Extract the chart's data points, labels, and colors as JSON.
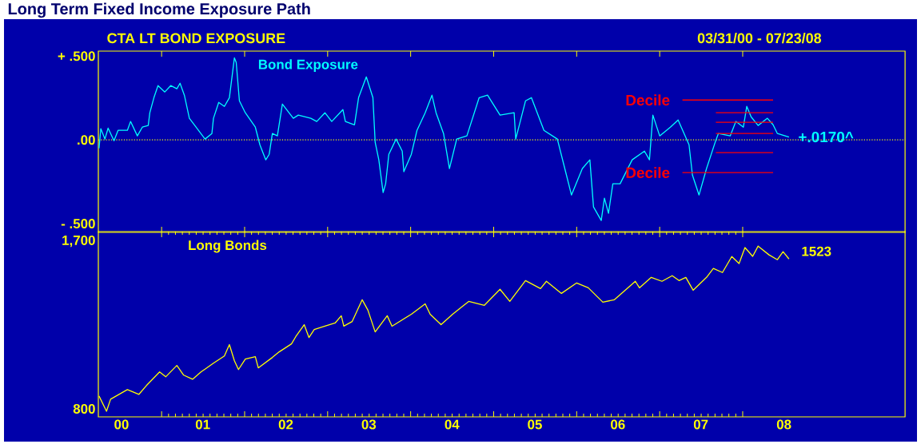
{
  "chart_data": [
    {
      "type": "line",
      "title": "Long Term Fixed Income Exposure Path",
      "subtitle": "CTA LT BOND EXPOSURE",
      "xlim": [
        "2000-03-28",
        "2009-12-16"
      ],
      "ylim": [
        -0.552,
        0.53
      ],
      "xticks": [
        {
          "value": "2001-01-01",
          "label": null
        },
        {
          "value": "2002-01-01",
          "label": null
        },
        {
          "value": "2003-01-01",
          "label": null
        },
        {
          "value": "2004-01-01",
          "label": null
        },
        {
          "value": "2005-01-01",
          "label": null
        },
        {
          "value": "2006-01-01",
          "label": null
        },
        {
          "value": "2007-01-01",
          "label": null
        },
        {
          "value": "2008-01-01",
          "label": null
        }
      ],
      "yticks": [
        {
          "value": 0.5,
          "label": "+ .500"
        },
        {
          "value": 0,
          "label": ".00"
        },
        {
          "value": -0.5,
          "label": "- .500"
        }
      ],
      "tick_labels": "y",
      "line_style": "solid",
      "marker": "none",
      "ref_lines": [
        {
          "axis": "y",
          "value": 0,
          "color": "#ffff00",
          "line_style": "dotted"
        }
      ],
      "annotations": [
        {
          "text": "Decile",
          "x": "2007-04-11",
          "y": 0.238
        },
        {
          "text": "Decile",
          "x": "2007-04-11",
          "y": -0.195
        },
        {
          "text": "+.0170^",
          "x": "2008-07-23",
          "y": 0.017
        },
        "03/31/00 - 07/23/08"
      ],
      "series": [
        {
          "name": "Bond Exposure",
          "color": "#00ffff",
          "x": [
            "2000-03-31",
            "2000-04-08",
            "2000-04-26",
            "2000-05-10",
            "2000-06-05",
            "2000-06-23",
            "2000-08-03",
            "2000-08-17",
            "2000-09-16",
            "2000-10-08",
            "2000-11-03",
            "2000-11-10",
            "2000-11-28",
            "2000-12-16",
            "2001-01-15",
            "2001-02-10",
            "2001-03-09",
            "2001-03-23",
            "2001-04-11",
            "2001-05-03",
            "2001-05-25",
            "2001-07-11",
            "2001-08-10",
            "2001-08-17",
            "2001-09-09",
            "2001-10-04",
            "2001-10-26",
            "2001-11-17",
            "2001-11-25",
            "2001-12-09",
            "2002-01-04",
            "2002-02-17",
            "2002-03-09",
            "2002-04-04",
            "2002-04-19",
            "2002-05-03",
            "2002-05-25",
            "2002-06-16",
            "2002-08-03",
            "2002-08-25",
            "2002-10-19",
            "2002-11-14",
            "2002-12-20",
            "2003-01-19",
            "2003-03-09",
            "2003-03-20",
            "2003-04-29",
            "2003-05-17",
            "2003-06-20",
            "2003-07-19",
            "2003-07-29",
            "2003-08-14",
            "2003-09-02",
            "2003-09-13",
            "2003-09-27",
            "2003-10-29",
            "2003-11-25",
            "2003-12-02",
            "2004-01-04",
            "2004-01-29",
            "2004-03-05",
            "2004-04-04",
            "2004-04-22",
            "2004-05-25",
            "2004-06-20",
            "2004-07-22",
            "2004-09-05",
            "2004-10-29",
            "2004-12-05",
            "2005-01-29",
            "2005-04-01",
            "2005-04-08",
            "2005-05-21",
            "2005-06-16",
            "2005-08-10",
            "2005-10-08",
            "2005-11-17",
            "2005-12-09",
            "2006-01-26",
            "2006-02-28",
            "2006-03-16",
            "2006-04-19",
            "2006-05-03",
            "2006-05-21",
            "2006-06-09",
            "2006-07-11",
            "2006-09-02",
            "2006-10-26",
            "2006-11-17",
            "2006-12-02",
            "2007-01-01",
            "2007-02-17",
            "2007-03-23",
            "2007-05-10",
            "2007-05-25",
            "2007-06-23",
            "2007-07-26",
            "2007-09-02",
            "2007-09-16",
            "2007-11-07",
            "2007-12-02",
            "2008-01-04",
            "2008-01-19",
            "2008-02-07",
            "2008-03-09",
            "2008-04-19",
            "2008-05-14",
            "2008-06-02",
            "2008-07-23"
          ],
          "values": [
            -0.05,
            0.067,
            0.005,
            0.07,
            -0.005,
            0.057,
            0.057,
            0.11,
            0.024,
            0.076,
            0.086,
            0.162,
            0.252,
            0.324,
            0.286,
            0.324,
            0.305,
            0.338,
            0.267,
            0.129,
            0.09,
            0.005,
            0.038,
            0.129,
            0.224,
            0.2,
            0.252,
            0.49,
            0.462,
            0.233,
            0.162,
            0.076,
            -0.029,
            -0.119,
            -0.086,
            0.038,
            0.024,
            0.214,
            0.129,
            0.148,
            0.129,
            0.11,
            0.162,
            0.11,
            0.181,
            0.11,
            0.09,
            0.252,
            0.376,
            0.252,
            -0.014,
            -0.119,
            -0.314,
            -0.262,
            -0.086,
            0.005,
            -0.067,
            -0.19,
            -0.086,
            0.057,
            0.162,
            0.267,
            0.162,
            0.038,
            -0.171,
            0.005,
            0.024,
            0.252,
            0.267,
            0.148,
            0.162,
            0.005,
            0.233,
            0.252,
            0.057,
            0.005,
            -0.21,
            -0.329,
            -0.171,
            -0.119,
            -0.4,
            -0.481,
            -0.348,
            -0.438,
            -0.262,
            -0.262,
            -0.119,
            -0.067,
            -0.119,
            0.148,
            0.024,
            0.076,
            0.119,
            -0.029,
            -0.21,
            -0.329,
            -0.171,
            -0.014,
            0.038,
            0.024,
            0.11,
            0.076,
            0.2,
            0.138,
            0.086,
            0.129,
            0.09,
            0.038,
            0.017
          ]
        },
        {
          "color": "#ff0000",
          "x": [
            "2007-04-11",
            "2008-05-14"
          ],
          "values": [
            0.238,
            0.238
          ]
        },
        {
          "color": "#ff0000",
          "x": [
            "2007-09-05",
            "2008-05-14"
          ],
          "values": [
            0.162,
            0.162
          ]
        },
        {
          "color": "#ff0000",
          "x": [
            "2007-09-05",
            "2008-05-14"
          ],
          "values": [
            0.105,
            0.105
          ]
        },
        {
          "color": "#ff0000",
          "x": [
            "2007-09-05",
            "2008-05-14"
          ],
          "values": [
            0.038,
            0.038
          ]
        },
        {
          "color": "#ff0000",
          "x": [
            "2007-09-05",
            "2008-05-14"
          ],
          "values": [
            -0.076,
            -0.076
          ]
        },
        {
          "color": "#ff0000",
          "x": [
            "2007-04-11",
            "2008-05-14"
          ],
          "values": [
            -0.195,
            -0.195
          ]
        }
      ]
    },
    {
      "type": "line",
      "xlim": [
        "2000-03-28",
        "2009-12-16"
      ],
      "ylim": [
        757,
        1752
      ],
      "xticks": [
        {
          "value": "2001-01-01",
          "label": null
        },
        {
          "value": "2002-01-01",
          "label": null
        },
        {
          "value": "2003-01-01",
          "label": null
        },
        {
          "value": "2004-01-01",
          "label": null
        },
        {
          "value": "2005-01-01",
          "label": null
        },
        {
          "value": "2006-01-01",
          "label": null
        },
        {
          "value": "2007-01-01",
          "label": null
        },
        {
          "value": "2008-01-01",
          "label": null
        },
        {
          "value": "2000-07-08",
          "label": "00"
        },
        {
          "value": "2001-07-01",
          "label": "01"
        },
        {
          "value": "2002-07-01",
          "label": "02"
        },
        {
          "value": "2003-07-01",
          "label": "03"
        },
        {
          "value": "2004-07-01",
          "label": "04"
        },
        {
          "value": "2005-07-01",
          "label": "05"
        },
        {
          "value": "2006-07-01",
          "label": "06"
        },
        {
          "value": "2007-07-01",
          "label": "07"
        },
        {
          "value": "2008-07-01",
          "label": "08"
        }
      ],
      "yticks": [
        {
          "value": 1700,
          "label": "1,700"
        },
        800
      ],
      "line_style": "solid",
      "marker": "none",
      "annotations": [
        "1523"
      ],
      "series": [
        {
          "name": "Long Bonds",
          "color": "#ffff00",
          "x": [
            "2000-03-31",
            "2000-05-03",
            "2000-05-21",
            "2000-08-03",
            "2000-09-23",
            "2000-10-26",
            "2000-12-23",
            "2001-01-19",
            "2001-03-09",
            "2001-04-08",
            "2001-05-17",
            "2001-06-23",
            "2001-08-17",
            "2001-10-04",
            "2001-10-26",
            "2001-11-17",
            "2001-12-05",
            "2002-01-04",
            "2002-02-17",
            "2002-03-02",
            "2002-05-03",
            "2002-06-02",
            "2002-07-26",
            "2002-08-14",
            "2002-09-20",
            "2002-10-11",
            "2002-11-03",
            "2002-12-20",
            "2003-02-03",
            "2003-03-02",
            "2003-03-13",
            "2003-04-19",
            "2003-06-02",
            "2003-06-27",
            "2003-07-29",
            "2003-09-20",
            "2003-10-11",
            "2004-01-04",
            "2004-03-05",
            "2004-03-27",
            "2004-05-14",
            "2004-07-04",
            "2004-08-17",
            "2004-09-13",
            "2004-11-21",
            "2005-01-29",
            "2005-03-13",
            "2005-05-21",
            "2005-07-26",
            "2005-08-21",
            "2005-10-26",
            "2006-01-01",
            "2006-02-21",
            "2006-04-26",
            "2006-06-16",
            "2006-09-16",
            "2006-10-04",
            "2006-11-25",
            "2007-01-11",
            "2007-02-25",
            "2007-03-27",
            "2007-04-26",
            "2007-05-28",
            "2007-07-26",
            "2007-08-25",
            "2007-10-04",
            "2007-11-14",
            "2007-12-16",
            "2008-01-11",
            "2008-02-14",
            "2008-03-09",
            "2008-04-26",
            "2008-06-02",
            "2008-06-27",
            "2008-07-23"
          ],
          "values": [
            869,
            787,
            852,
            903,
            878,
            925,
            998,
            972,
            1033,
            981,
            959,
            998,
            1045,
            1084,
            1145,
            1058,
            1011,
            1067,
            1080,
            1020,
            1076,
            1106,
            1149,
            1188,
            1252,
            1183,
            1226,
            1244,
            1261,
            1300,
            1244,
            1269,
            1386,
            1330,
            1213,
            1300,
            1244,
            1308,
            1364,
            1308,
            1252,
            1308,
            1351,
            1377,
            1356,
            1442,
            1377,
            1489,
            1446,
            1485,
            1420,
            1476,
            1450,
            1373,
            1386,
            1485,
            1450,
            1506,
            1485,
            1515,
            1489,
            1506,
            1437,
            1506,
            1554,
            1532,
            1618,
            1580,
            1666,
            1619,
            1674,
            1627,
            1601,
            1644,
            1605
          ]
        }
      ]
    }
  ]
}
